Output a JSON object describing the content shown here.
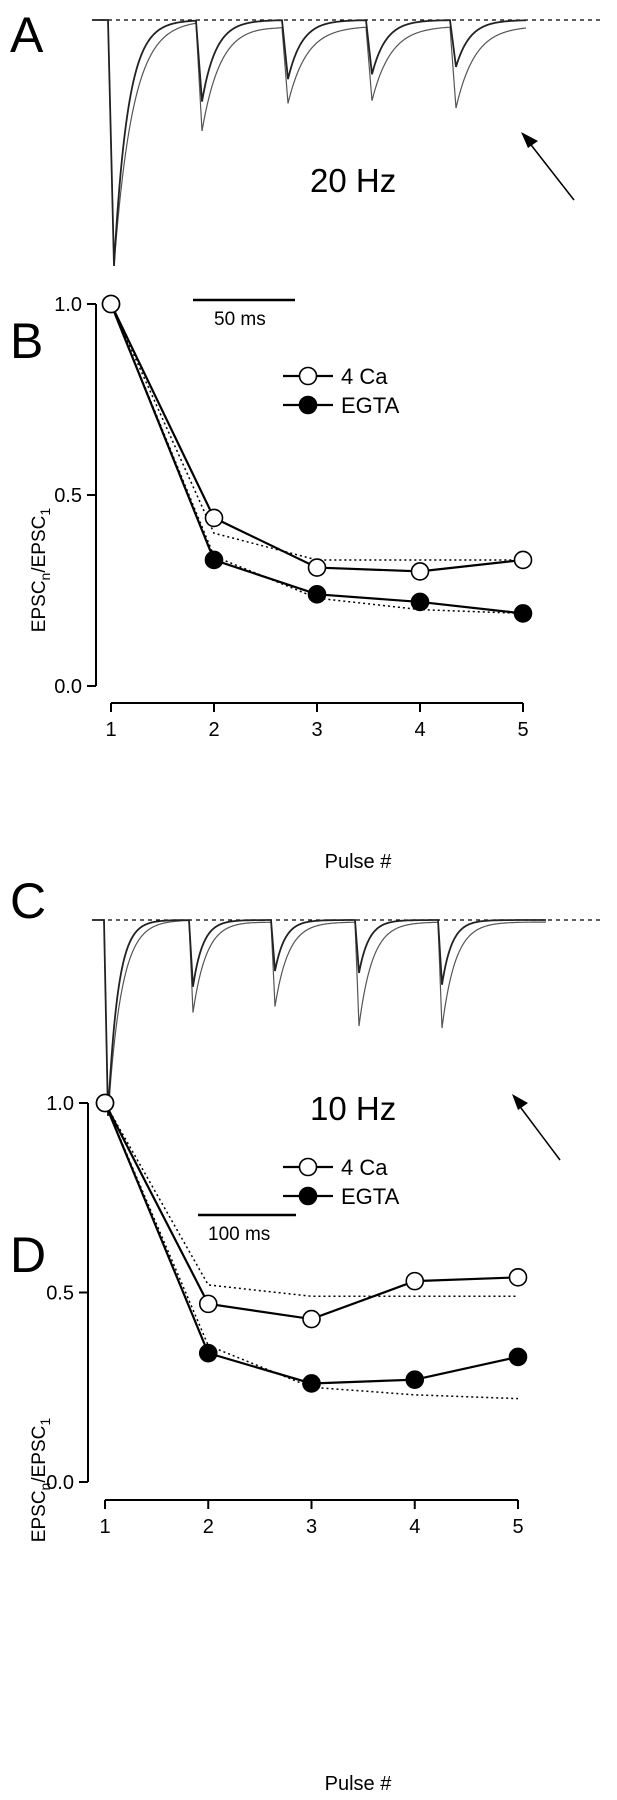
{
  "panels": {
    "A": {
      "letter": "A",
      "frequency_label": "20 Hz",
      "scale_bar_label": "50 ms"
    },
    "B": {
      "letter": "B"
    },
    "C": {
      "letter": "C",
      "frequency_label": "10 Hz",
      "scale_bar_label": "100 ms"
    },
    "D": {
      "letter": "D"
    }
  },
  "colors": {
    "ink": "#000000",
    "background": "#ffffff",
    "trace_ca": "#555555",
    "trace_egta": "#222222"
  },
  "chart_data": [
    {
      "id": "A",
      "type": "line",
      "description_label": "20 Hz",
      "series": [
        {
          "name": "",
          "relative_peaks": [
            1.0,
            0.44,
            0.31,
            0.3,
            0.33
          ]
        },
        {
          "name": "",
          "relative_peaks": [
            1.0,
            0.33,
            0.24,
            0.22,
            0.19
          ]
        }
      ],
      "scale_bar": "50 ms",
      "annotations": [
        "20 Hz",
        "50 ms",
        "arrow"
      ]
    },
    {
      "id": "B",
      "type": "line",
      "xlabel": "Pulse #",
      "ylabel": "EPSCn/EPSC1",
      "ylabel_parts": {
        "base1": "EPSC",
        "sub1": "n",
        "base2": "/EPSC",
        "sub2": "1"
      },
      "x": [
        1,
        2,
        3,
        4,
        5
      ],
      "xticks": [
        "1",
        "2",
        "3",
        "4",
        "5"
      ],
      "yticks": [
        "0.0",
        "0.5",
        "1.0"
      ],
      "xlim": [
        1,
        5
      ],
      "ylim": [
        0,
        1
      ],
      "series": [
        {
          "name": "4 Ca",
          "marker": "open-circle",
          "values": [
            1.0,
            0.44,
            0.31,
            0.3,
            0.33
          ]
        },
        {
          "name": "EGTA",
          "marker": "filled-circle",
          "values": [
            1.0,
            0.33,
            0.24,
            0.22,
            0.19
          ]
        }
      ],
      "fits": [
        {
          "style": "dotted",
          "values": [
            1.0,
            0.4,
            0.33,
            0.33,
            0.33
          ]
        },
        {
          "style": "dotted",
          "values": [
            1.0,
            0.34,
            0.23,
            0.2,
            0.19
          ]
        }
      ],
      "legend_position": "upper-middle"
    },
    {
      "id": "C",
      "type": "line",
      "description_label": "10 Hz",
      "series": [
        {
          "name": "",
          "relative_peaks": [
            1.0,
            0.47,
            0.43,
            0.53,
            0.54
          ]
        },
        {
          "name": "",
          "relative_peaks": [
            1.0,
            0.34,
            0.26,
            0.27,
            0.33
          ]
        }
      ],
      "scale_bar": "100 ms",
      "annotations": [
        "10 Hz",
        "100 ms",
        "arrow"
      ]
    },
    {
      "id": "D",
      "type": "line",
      "xlabel": "Pulse #",
      "ylabel": "EPSCn/EPSC1",
      "ylabel_parts": {
        "base1": "EPSC",
        "sub1": "n",
        "base2": "/EPSC",
        "sub2": "1"
      },
      "x": [
        1,
        2,
        3,
        4,
        5
      ],
      "xticks": [
        "1",
        "2",
        "3",
        "4",
        "5"
      ],
      "yticks": [
        "0.0",
        "0.5",
        "1.0"
      ],
      "xlim": [
        1,
        5
      ],
      "ylim": [
        0,
        1
      ],
      "series": [
        {
          "name": "4 Ca",
          "marker": "open-circle",
          "values": [
            1.0,
            0.47,
            0.43,
            0.53,
            0.54
          ]
        },
        {
          "name": "EGTA",
          "marker": "filled-circle",
          "values": [
            1.0,
            0.34,
            0.26,
            0.27,
            0.33
          ]
        }
      ],
      "fits": [
        {
          "style": "dotted",
          "values": [
            1.0,
            0.52,
            0.49,
            0.49,
            0.49
          ]
        },
        {
          "style": "dotted",
          "values": [
            1.0,
            0.36,
            0.25,
            0.23,
            0.22
          ]
        }
      ],
      "legend_position": "upper-middle"
    }
  ]
}
